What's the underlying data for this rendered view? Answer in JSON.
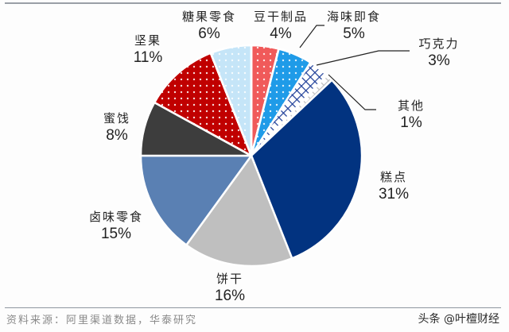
{
  "chart_data": {
    "type": "pie",
    "title": "",
    "start_angle_deg": 0,
    "direction": "clockwise",
    "slices": [
      {
        "label": "豆干制品",
        "value": 4,
        "pct_label": "4%",
        "color": "#f05a5a",
        "pattern": "dots"
      },
      {
        "label": "海味即食",
        "value": 5,
        "pct_label": "5%",
        "color": "#1f9be8",
        "pattern": "dots"
      },
      {
        "label": "巧克力",
        "value": 3,
        "pct_label": "3%",
        "color": "#1f3f99",
        "pattern": "grid"
      },
      {
        "label": "其他",
        "value": 1,
        "pct_label": "1%",
        "color": "#c8c8c8",
        "pattern": "cross"
      },
      {
        "label": "糕点",
        "value": 31,
        "pct_label": "31%",
        "color": "#023380",
        "pattern": "solid"
      },
      {
        "label": "饼干",
        "value": 16,
        "pct_label": "16%",
        "color": "#bfbfbf",
        "pattern": "solid"
      },
      {
        "label": "卤味零食",
        "value": 15,
        "pct_label": "15%",
        "color": "#5a80b3",
        "pattern": "solid"
      },
      {
        "label": "蜜饯",
        "value": 8,
        "pct_label": "8%",
        "color": "#3d3d3d",
        "pattern": "solid"
      },
      {
        "label": "坚果",
        "value": 11,
        "pct_label": "11%",
        "color": "#c00000",
        "pattern": "dots"
      },
      {
        "label": "糖果零食",
        "value": 6,
        "pct_label": "6%",
        "color": "#c5e5f8",
        "pattern": "dots"
      }
    ],
    "legend": "none (direct labels)"
  },
  "labels": {
    "douganzhipin": {
      "name": "豆干制品",
      "pct": "4%"
    },
    "haiweijishi": {
      "name": "海味即食",
      "pct": "5%"
    },
    "qiaokeli": {
      "name": "巧克力",
      "pct": "3%"
    },
    "qita": {
      "name": "其他",
      "pct": "1%"
    },
    "gaodian": {
      "name": "糕点",
      "pct": "31%"
    },
    "binggan": {
      "name": "饼干",
      "pct": "16%"
    },
    "luwei": {
      "name": "卤味零食",
      "pct": "15%"
    },
    "mijian": {
      "name": "蜜饯",
      "pct": "8%"
    },
    "jianguo": {
      "name": "坚果",
      "pct": "11%"
    },
    "tangguo": {
      "name": "糖果零食",
      "pct": "6%"
    }
  },
  "footer": {
    "source": "资料来源：阿里渠道数据，华泰研究",
    "watermark": "头条 @叶檀财经"
  }
}
